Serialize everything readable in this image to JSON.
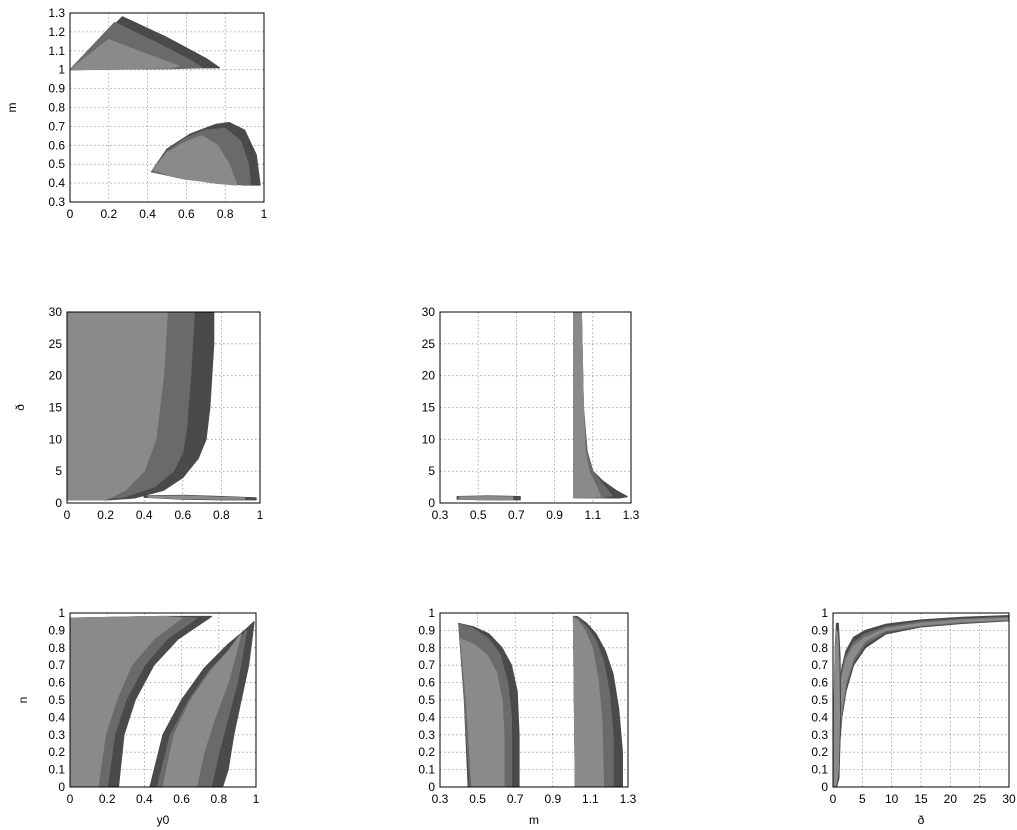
{
  "figure": {
    "type": "corner-plot",
    "parameters": [
      "y0",
      "m",
      "ð",
      "n"
    ],
    "region_colors": [
      "#4a4a4a",
      "#6a6a6a",
      "#8a8a8a"
    ]
  },
  "chart_data": [
    {
      "id": "m_vs_y0",
      "type": "area",
      "xlabel": "",
      "ylabel": "m",
      "xlim": [
        0,
        1
      ],
      "ylim": [
        0.3,
        1.3
      ],
      "xticks": [
        "0",
        "0.2",
        "0.4",
        "0.6",
        "0.8",
        "1"
      ],
      "yticks": [
        "0.3",
        "0.4",
        "0.5",
        "0.6",
        "0.7",
        "0.8",
        "0.9",
        "1",
        "1.1",
        "1.2",
        "1.3"
      ],
      "grid": true,
      "regions": [
        {
          "level": 3,
          "x": [
            0.0,
            0.27,
            0.5,
            0.7,
            0.77,
            0.62,
            0.3,
            0.0
          ],
          "y": [
            1.0,
            1.28,
            1.17,
            1.06,
            1.01,
            1.01,
            1.005,
            1.0
          ]
        },
        {
          "level": 2,
          "x": [
            0.0,
            0.23,
            0.45,
            0.62,
            0.68,
            0.5,
            0.25,
            0.0
          ],
          "y": [
            1.0,
            1.25,
            1.14,
            1.05,
            1.01,
            1.005,
            1.003,
            1.0
          ]
        },
        {
          "level": 1,
          "x": [
            0.0,
            0.2,
            0.4,
            0.56,
            0.52,
            0.3,
            0.0
          ],
          "y": [
            1.0,
            1.16,
            1.08,
            1.02,
            1.01,
            1.005,
            1.0
          ]
        },
        {
          "level": 3,
          "x": [
            0.42,
            0.5,
            0.62,
            0.75,
            0.82,
            0.9,
            0.96,
            0.98,
            0.9,
            0.7,
            0.42
          ],
          "y": [
            0.46,
            0.58,
            0.66,
            0.71,
            0.72,
            0.68,
            0.55,
            0.39,
            0.39,
            0.41,
            0.46
          ]
        },
        {
          "level": 2,
          "x": [
            0.42,
            0.5,
            0.6,
            0.7,
            0.8,
            0.88,
            0.92,
            0.93,
            0.8,
            0.6,
            0.42
          ],
          "y": [
            0.46,
            0.57,
            0.64,
            0.68,
            0.69,
            0.62,
            0.5,
            0.39,
            0.4,
            0.42,
            0.46
          ]
        },
        {
          "level": 1,
          "x": [
            0.43,
            0.5,
            0.6,
            0.68,
            0.76,
            0.82,
            0.86,
            0.75,
            0.55,
            0.43
          ],
          "y": [
            0.47,
            0.56,
            0.62,
            0.65,
            0.6,
            0.5,
            0.39,
            0.4,
            0.43,
            0.47
          ]
        }
      ]
    },
    {
      "id": "d_vs_y0",
      "type": "area",
      "xlabel": "",
      "ylabel": "ð",
      "xlim": [
        0,
        1
      ],
      "ylim": [
        0,
        30
      ],
      "xticks": [
        "0",
        "0.2",
        "0.4",
        "0.6",
        "0.8",
        "1"
      ],
      "yticks": [
        "0",
        "5",
        "10",
        "15",
        "20",
        "25",
        "30"
      ],
      "grid": true,
      "regions": [
        {
          "level": 3,
          "x": [
            0.0,
            0.76,
            0.76,
            0.74,
            0.72,
            0.68,
            0.6,
            0.5,
            0.35,
            0.22,
            0.0
          ],
          "y": [
            30,
            30,
            25,
            15,
            10,
            7,
            4,
            2,
            0.8,
            0.5,
            0.5
          ]
        },
        {
          "level": 2,
          "x": [
            0.0,
            0.66,
            0.64,
            0.62,
            0.6,
            0.55,
            0.45,
            0.3,
            0.18,
            0.0
          ],
          "y": [
            30,
            30,
            20,
            12,
            8,
            5,
            2.5,
            1,
            0.5,
            0.5
          ]
        },
        {
          "level": 1,
          "x": [
            0.0,
            0.52,
            0.5,
            0.46,
            0.4,
            0.3,
            0.2,
            0.0
          ],
          "y": [
            30,
            30,
            20,
            10,
            5,
            2,
            0.5,
            0.5
          ]
        },
        {
          "level": 3,
          "x": [
            0.4,
            0.6,
            0.8,
            0.98,
            0.98,
            0.8,
            0.6,
            0.4
          ],
          "y": [
            1.1,
            1.2,
            1.0,
            0.8,
            0.5,
            0.5,
            0.6,
            0.9
          ]
        },
        {
          "level": 1,
          "x": [
            0.42,
            0.6,
            0.8,
            0.92,
            0.92,
            0.8,
            0.6,
            0.42
          ],
          "y": [
            1.0,
            1.1,
            0.9,
            0.8,
            0.6,
            0.6,
            0.7,
            0.9
          ]
        }
      ]
    },
    {
      "id": "d_vs_m",
      "type": "area",
      "xlabel": "",
      "ylabel": "",
      "xlim": [
        0.3,
        1.3
      ],
      "ylim": [
        0,
        30
      ],
      "xticks": [
        "0.3",
        "0.5",
        "0.7",
        "0.9",
        "1.1",
        "1.3"
      ],
      "yticks": [
        "0",
        "5",
        "10",
        "15",
        "20",
        "25",
        "30"
      ],
      "grid": true,
      "regions": [
        {
          "level": 3,
          "x": [
            1.0,
            1.04,
            1.05,
            1.07,
            1.1,
            1.15,
            1.22,
            1.28,
            1.24,
            1.1,
            1.0
          ],
          "y": [
            30,
            30,
            15,
            8,
            5,
            3.5,
            2,
            1,
            0.8,
            0.8,
            0.8
          ]
        },
        {
          "level": 2,
          "x": [
            1.0,
            1.04,
            1.05,
            1.07,
            1.1,
            1.15,
            1.2,
            1.15,
            1.0
          ],
          "y": [
            30,
            30,
            15,
            8,
            5,
            3,
            1.2,
            0.8,
            0.8
          ]
        },
        {
          "level": 1,
          "x": [
            1.0,
            1.04,
            1.05,
            1.06,
            1.08,
            1.12,
            1.14,
            1.0
          ],
          "y": [
            30,
            30,
            15,
            8,
            5,
            2.5,
            1,
            0.8
          ]
        },
        {
          "level": 3,
          "x": [
            0.39,
            0.55,
            0.72,
            0.72,
            0.55,
            0.39
          ],
          "y": [
            1.0,
            1.1,
            1.0,
            0.5,
            0.5,
            0.6
          ]
        },
        {
          "level": 1,
          "x": [
            0.4,
            0.55,
            0.68,
            0.68,
            0.55,
            0.4
          ],
          "y": [
            0.95,
            1.0,
            0.95,
            0.55,
            0.55,
            0.65
          ]
        }
      ]
    },
    {
      "id": "n_vs_y0",
      "type": "area",
      "xlabel": "y0",
      "ylabel": "n",
      "xlim": [
        0,
        1
      ],
      "ylim": [
        0,
        1
      ],
      "xticks": [
        "0",
        "0.2",
        "0.4",
        "0.6",
        "0.8",
        "1"
      ],
      "yticks": [
        "0",
        "0.1",
        "0.2",
        "0.3",
        "0.4",
        "0.5",
        "0.6",
        "0.7",
        "0.8",
        "0.9",
        "1"
      ],
      "grid": true,
      "regions": [
        {
          "level": 3,
          "x": [
            0.0,
            0.5,
            0.76,
            0.58,
            0.45,
            0.35,
            0.29,
            0.26,
            0.0
          ],
          "y": [
            0.97,
            0.98,
            0.98,
            0.85,
            0.7,
            0.5,
            0.3,
            0.0,
            0.0
          ]
        },
        {
          "level": 2,
          "x": [
            0.0,
            0.5,
            0.68,
            0.52,
            0.4,
            0.3,
            0.24,
            0.2,
            0.0
          ],
          "y": [
            0.97,
            0.98,
            0.97,
            0.85,
            0.7,
            0.5,
            0.3,
            0.0,
            0.0
          ]
        },
        {
          "level": 1,
          "x": [
            0.0,
            0.5,
            0.6,
            0.45,
            0.33,
            0.25,
            0.19,
            0.15,
            0.0
          ],
          "y": [
            0.97,
            0.98,
            0.97,
            0.85,
            0.7,
            0.5,
            0.3,
            0.0,
            0.0
          ]
        },
        {
          "level": 3,
          "x": [
            0.43,
            0.5,
            0.6,
            0.72,
            0.85,
            0.94,
            0.99,
            0.96,
            0.92,
            0.88,
            0.85,
            0.82,
            0.43
          ],
          "y": [
            0.0,
            0.3,
            0.5,
            0.68,
            0.82,
            0.9,
            0.95,
            0.7,
            0.5,
            0.3,
            0.1,
            0.0,
            0.0
          ]
        },
        {
          "level": 2,
          "x": [
            0.47,
            0.54,
            0.64,
            0.75,
            0.87,
            0.95,
            0.9,
            0.85,
            0.8,
            0.76,
            0.47
          ],
          "y": [
            0.0,
            0.3,
            0.5,
            0.67,
            0.8,
            0.9,
            0.6,
            0.4,
            0.2,
            0.0,
            0.0
          ]
        },
        {
          "level": 1,
          "x": [
            0.5,
            0.56,
            0.65,
            0.76,
            0.85,
            0.92,
            0.85,
            0.78,
            0.72,
            0.68,
            0.5
          ],
          "y": [
            0.0,
            0.3,
            0.5,
            0.67,
            0.78,
            0.88,
            0.6,
            0.4,
            0.2,
            0.0,
            0.0
          ]
        }
      ]
    },
    {
      "id": "n_vs_m",
      "type": "area",
      "xlabel": "m",
      "ylabel": "",
      "xlim": [
        0.3,
        1.3
      ],
      "ylim": [
        0,
        1
      ],
      "xticks": [
        "0.3",
        "0.5",
        "0.7",
        "0.9",
        "1.1",
        "1.3"
      ],
      "yticks": [
        "0",
        "0.1",
        "0.2",
        "0.3",
        "0.4",
        "0.5",
        "0.6",
        "0.7",
        "0.8",
        "0.9",
        "1"
      ],
      "grid": true,
      "regions": [
        {
          "level": 3,
          "x": [
            0.4,
            0.48,
            0.56,
            0.63,
            0.68,
            0.71,
            0.72,
            0.72,
            0.45,
            0.43,
            0.4
          ],
          "y": [
            0.94,
            0.92,
            0.88,
            0.8,
            0.7,
            0.55,
            0.3,
            0.0,
            0.0,
            0.5,
            0.94
          ]
        },
        {
          "level": 2,
          "x": [
            0.4,
            0.48,
            0.56,
            0.62,
            0.66,
            0.68,
            0.68,
            0.46,
            0.43,
            0.4
          ],
          "y": [
            0.94,
            0.91,
            0.85,
            0.76,
            0.6,
            0.4,
            0.0,
            0.0,
            0.5,
            0.94
          ]
        },
        {
          "level": 1,
          "x": [
            0.41,
            0.48,
            0.55,
            0.6,
            0.63,
            0.64,
            0.64,
            0.47,
            0.44,
            0.41
          ],
          "y": [
            0.85,
            0.82,
            0.76,
            0.66,
            0.5,
            0.3,
            0.0,
            0.0,
            0.5,
            0.85
          ]
        },
        {
          "level": 3,
          "x": [
            1.01,
            1.03,
            1.08,
            1.13,
            1.18,
            1.22,
            1.25,
            1.27,
            1.27,
            1.02,
            1.01
          ],
          "y": [
            0.98,
            0.98,
            0.94,
            0.88,
            0.78,
            0.65,
            0.45,
            0.2,
            0.0,
            0.0,
            0.98
          ]
        },
        {
          "level": 2,
          "x": [
            1.01,
            1.03,
            1.08,
            1.13,
            1.17,
            1.2,
            1.22,
            1.22,
            1.02,
            1.01
          ],
          "y": [
            0.98,
            0.97,
            0.92,
            0.84,
            0.72,
            0.55,
            0.3,
            0.0,
            0.0,
            0.98
          ]
        },
        {
          "level": 1,
          "x": [
            1.01,
            1.03,
            1.07,
            1.11,
            1.14,
            1.16,
            1.17,
            1.02,
            1.01
          ],
          "y": [
            0.97,
            0.96,
            0.9,
            0.8,
            0.62,
            0.4,
            0.0,
            0.0,
            0.97
          ]
        }
      ]
    },
    {
      "id": "n_vs_d",
      "type": "area",
      "xlabel": "ð",
      "ylabel": "",
      "xlim": [
        0,
        30
      ],
      "ylim": [
        0,
        1
      ],
      "xticks": [
        "0",
        "5",
        "10",
        "15",
        "20",
        "25",
        "30"
      ],
      "yticks": [
        "0",
        "0.1",
        "0.2",
        "0.3",
        "0.4",
        "0.5",
        "0.6",
        "0.7",
        "0.8",
        "0.9",
        "1"
      ],
      "grid": true,
      "regions": [
        {
          "level": 3,
          "x": [
            0.3,
            0.6,
            1.0,
            1.5,
            2.2,
            3.5,
            5.5,
            9.0,
            15.0,
            22.0,
            30.0,
            30.0,
            22.0,
            15.0,
            9.0,
            5.5,
            3.5,
            2.2,
            1.5,
            1.0,
            0.6,
            0.3
          ],
          "y": [
            0.0,
            0.3,
            0.55,
            0.68,
            0.78,
            0.86,
            0.9,
            0.935,
            0.96,
            0.975,
            0.985,
            0.955,
            0.94,
            0.92,
            0.88,
            0.8,
            0.7,
            0.55,
            0.4,
            0.2,
            0.05,
            0.0
          ]
        },
        {
          "level": 2,
          "x": [
            0.3,
            0.6,
            1.0,
            1.5,
            2.2,
            3.5,
            5.5,
            9.0,
            15.0,
            22.0,
            30.0,
            30.0,
            22.0,
            15.0,
            9.0,
            5.5,
            3.5,
            2.2,
            1.5,
            1.0,
            0.6,
            0.3
          ],
          "y": [
            0.0,
            0.28,
            0.52,
            0.65,
            0.75,
            0.83,
            0.88,
            0.92,
            0.95,
            0.965,
            0.975,
            0.96,
            0.945,
            0.925,
            0.89,
            0.82,
            0.72,
            0.58,
            0.42,
            0.22,
            0.06,
            0.0
          ]
        },
        {
          "level": 1,
          "x": [
            0.3,
            0.6,
            1.0,
            1.5,
            2.2,
            3.5,
            5.5,
            9.0,
            15.0,
            22.0,
            30.0,
            30.0,
            22.0,
            15.0,
            9.0,
            5.5,
            3.5,
            2.2,
            1.5,
            1.0,
            0.6,
            0.3
          ],
          "y": [
            0.0,
            0.26,
            0.5,
            0.63,
            0.73,
            0.81,
            0.86,
            0.91,
            0.94,
            0.96,
            0.97,
            0.962,
            0.95,
            0.93,
            0.9,
            0.84,
            0.74,
            0.6,
            0.45,
            0.25,
            0.08,
            0.0
          ]
        },
        {
          "level": 3,
          "x": [
            0.0,
            0.3,
            0.6,
            1.0,
            1.3,
            1.2,
            0.9,
            0.6,
            0.4,
            0.2,
            0.0
          ],
          "y": [
            0.0,
            0.0,
            0.0,
            0.05,
            0.4,
            0.75,
            0.94,
            0.94,
            0.8,
            0.5,
            0.0
          ]
        },
        {
          "level": 1,
          "x": [
            0.1,
            0.3,
            0.6,
            0.9,
            1.1,
            1.0,
            0.8,
            0.6,
            0.4,
            0.2,
            0.1
          ],
          "y": [
            0.0,
            0.0,
            0.02,
            0.1,
            0.4,
            0.7,
            0.88,
            0.9,
            0.75,
            0.45,
            0.0
          ]
        }
      ]
    }
  ]
}
